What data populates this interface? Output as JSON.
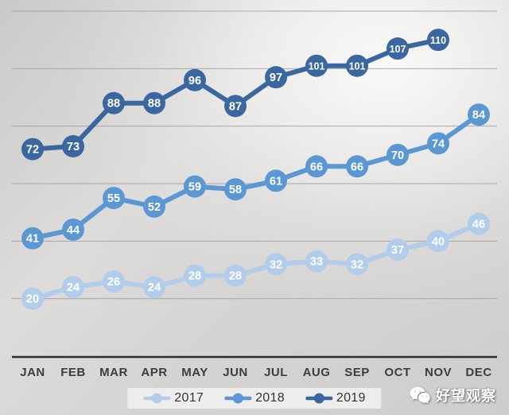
{
  "chart_data": {
    "type": "line",
    "title": "",
    "xlabel": "",
    "ylabel": "",
    "categories": [
      "JAN",
      "FEB",
      "MAR",
      "APR",
      "MAY",
      "JUN",
      "JUL",
      "AUG",
      "SEP",
      "OCT",
      "NOV",
      "DEC"
    ],
    "series": [
      {
        "name": "2017",
        "color": "#b2cdeb",
        "values": [
          20,
          24,
          26,
          24,
          28,
          28,
          32,
          33,
          32,
          37,
          40,
          46
        ]
      },
      {
        "name": "2018",
        "color": "#5b97d2",
        "values": [
          41,
          44,
          55,
          52,
          59,
          58,
          61,
          66,
          66,
          70,
          74,
          84
        ]
      },
      {
        "name": "2019",
        "color": "#3a67a0",
        "values": [
          72,
          73,
          88,
          88,
          96,
          87,
          97,
          101,
          101,
          107,
          110
        ]
      }
    ],
    "ylim": [
      0,
      120
    ],
    "grid": true,
    "grid_interval": 20,
    "legend_position": "bottom",
    "data_labels": true,
    "data_label_color": "#ffffff"
  },
  "axis": {
    "line_color": "#2d2d2d",
    "grid_color": "#9c9a98",
    "tick_label_color": "#3d3d3d"
  },
  "legend": {
    "background": "#eeedeb"
  },
  "watermark": {
    "icon": "wechat-icon",
    "text": "好望观察",
    "color": "#ffffff"
  }
}
